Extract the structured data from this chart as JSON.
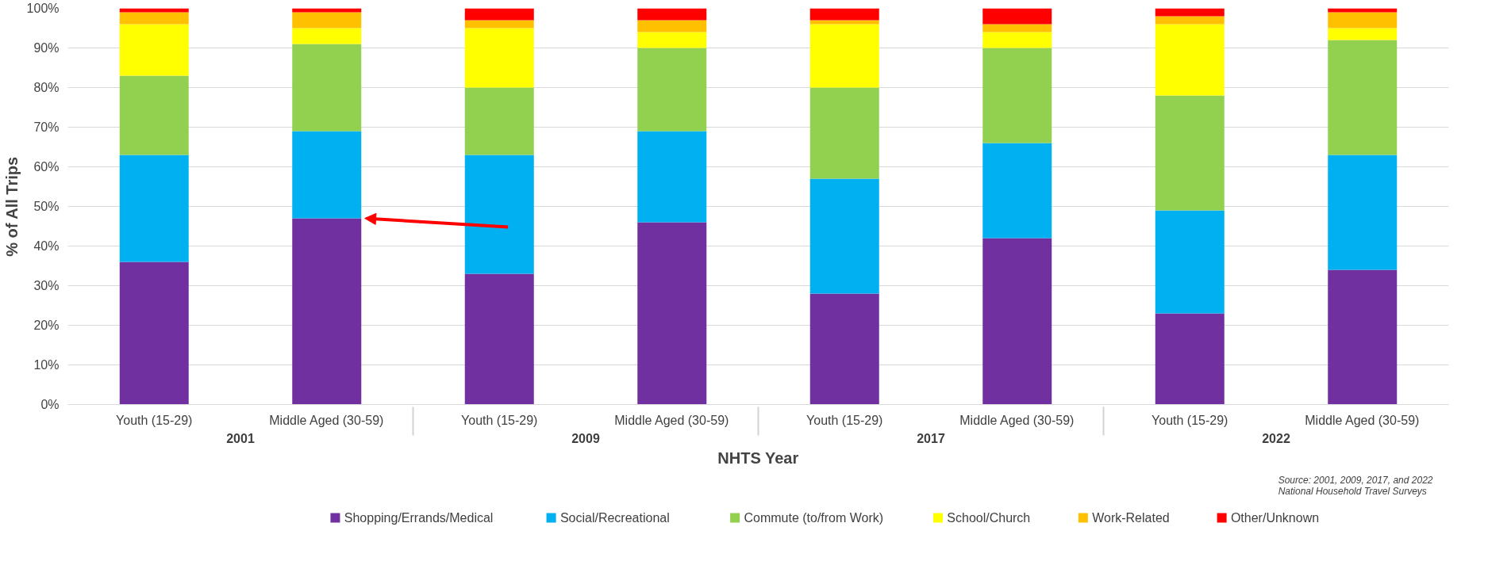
{
  "chart_data": {
    "type": "bar",
    "stacked": true,
    "xlabel": "NHTS Year",
    "ylabel": "% of All Trips",
    "categories": [
      "Youth (15-29)",
      "Middle Aged (30-59)",
      "Youth (15-29)",
      "Middle Aged (30-59)",
      "Youth (15-29)",
      "Middle Aged (30-59)",
      "Youth (15-29)",
      "Middle Aged (30-59)"
    ],
    "series": [
      {
        "name": "Shopping/Errands/Medical",
        "color": "#7030a0",
        "values": [
          36,
          47,
          33,
          46,
          28,
          42,
          23,
          34
        ]
      },
      {
        "name": "Social/Recreational",
        "color": "#00b0f0",
        "values": [
          27,
          22,
          30,
          23,
          29,
          24,
          26,
          29
        ]
      },
      {
        "name": "Commute (to/from Work)",
        "color": "#92d050",
        "values": [
          20,
          22,
          17,
          21,
          23,
          24,
          29,
          29
        ]
      },
      {
        "name": "School/Church",
        "color": "#ffff00",
        "values": [
          13,
          4,
          15,
          4,
          16,
          4,
          18,
          3
        ]
      },
      {
        "name": "Work-Related",
        "color": "#ffc000",
        "values": [
          3,
          4,
          2,
          3,
          1,
          2,
          2,
          4
        ]
      },
      {
        "name": "Other/Unknown",
        "color": "#ff0000",
        "values": [
          1,
          1,
          3,
          3,
          3,
          4,
          2,
          1
        ]
      }
    ],
    "ylim": [
      0,
      100
    ],
    "yticks": [
      {
        "value": 0,
        "label": "0%"
      },
      {
        "value": 10,
        "label": "10%"
      },
      {
        "value": 20,
        "label": "20%"
      },
      {
        "value": 30,
        "label": "30%"
      },
      {
        "value": 40,
        "label": "40%"
      },
      {
        "value": 50,
        "label": "50%"
      },
      {
        "value": 60,
        "label": "60%"
      },
      {
        "value": 70,
        "label": "70%"
      },
      {
        "value": 80,
        "label": "80%"
      },
      {
        "value": 90,
        "label": "90%"
      },
      {
        "value": 100,
        "label": "100%"
      }
    ],
    "grid": "y",
    "legend": "bottom",
    "annotations": [
      "2001",
      "2009",
      "2017",
      "2022",
      "Source: 2001, 2009, 2017, and 2022\nNational Household Travel Surveys"
    ]
  }
}
